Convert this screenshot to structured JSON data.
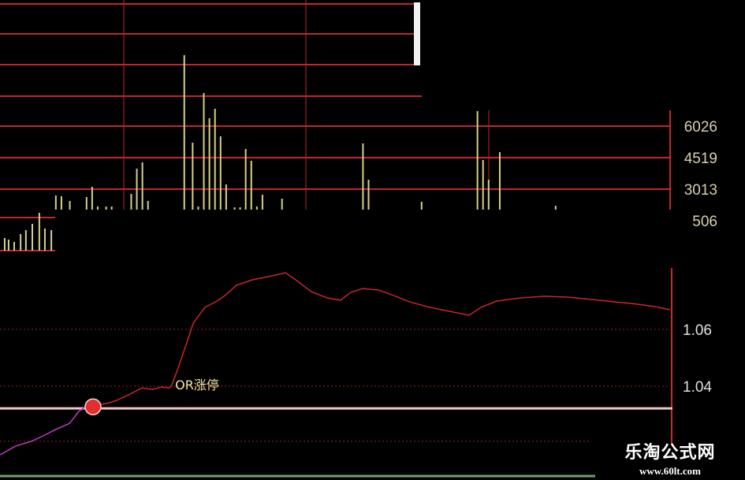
{
  "chart_data": [
    {
      "type": "bar",
      "panel": "volume",
      "x_unit": "minute",
      "xlim": [
        0,
        240
      ],
      "ylim": [
        2033,
        10000
      ],
      "y_ticks": [
        6026,
        4519,
        3013,
        506
      ],
      "y_tick_labels": [
        "6026",
        "4519",
        "3013",
        "506"
      ],
      "grid": true,
      "bar_color": "#d8d08a",
      "grid_color": "#c0282a",
      "x": [
        20,
        22,
        25,
        31,
        33,
        35,
        38,
        40,
        47,
        49,
        51,
        53,
        66,
        69,
        71,
        73,
        75,
        77,
        79,
        81,
        84,
        86,
        88,
        90,
        92,
        94,
        101,
        130,
        132,
        151,
        171,
        173,
        175,
        179,
        199
      ],
      "values": [
        2712,
        2674,
        2448,
        2636,
        3126,
        2184,
        2184,
        2184,
        2787,
        3993,
        4294,
        2448,
        9418,
        5236,
        2184,
        7609,
        6404,
        6856,
        5537,
        3239,
        2146,
        2146,
        4934,
        4369,
        2184,
        2749,
        2561,
        5198,
        3465,
        2410,
        6743,
        4407,
        3465,
        4784,
        2222
      ],
      "inset": {
        "x": [
          1.4,
          2.8,
          4.8,
          7.1,
          9,
          11.3,
          13.8,
          15.8,
          18.1
        ],
        "values": [
          2636,
          2560,
          2447,
          2824,
          3013,
          3314,
          3841,
          3088,
          3013
        ]
      }
    },
    {
      "type": "line",
      "panel": "price",
      "x_unit": "minute",
      "xlim": [
        0,
        240
      ],
      "ylim": [
        1.0135,
        1.0845
      ],
      "y_ticks": [
        1.06,
        1.04
      ],
      "y_tick_labels": [
        "1.06",
        "1.04"
      ],
      "grid": true,
      "reference_line": 1.0322,
      "lower_dotted_line": 1.0206,
      "colors": {
        "pre": "#c040c0",
        "post": "#c8282a",
        "reference": "#f0c8c8",
        "annotation": "#f0e6a0",
        "marker": "#e03030"
      },
      "x": [
        0,
        5.6,
        11.3,
        15.5,
        19.8,
        24.9,
        28.2,
        31.1,
        33.3,
        38.1,
        41.8,
        46.6,
        50.8,
        54.5,
        57.9,
        60.7,
        61.6,
        63.5,
        66.4,
        69.2,
        73.4,
        77.7,
        80.5,
        84.7,
        90.4,
        97.4,
        102.2,
        105.9,
        111.5,
        117.2,
        122,
        125.7,
        129.9,
        135.6,
        141.2,
        146.8,
        153.9,
        161,
        168,
        172.3,
        177.9,
        186.4,
        194.9,
        203.3,
        211.8,
        220.3,
        225.9,
        234.4,
        240
      ],
      "values": [
        1.0158,
        1.0189,
        1.0206,
        1.0225,
        1.0247,
        1.0269,
        1.0311,
        1.0331,
        1.0333,
        1.0339,
        1.035,
        1.0372,
        1.0394,
        1.0389,
        1.0397,
        1.0394,
        1.0406,
        1.0456,
        1.0539,
        1.0622,
        1.0678,
        1.07,
        1.0719,
        1.0756,
        1.0775,
        1.0789,
        1.08,
        1.0775,
        1.0733,
        1.0711,
        1.0703,
        1.0731,
        1.0744,
        1.0739,
        1.0719,
        1.0697,
        1.0678,
        1.0664,
        1.065,
        1.0678,
        1.07,
        1.0711,
        1.0717,
        1.0714,
        1.0706,
        1.0697,
        1.0692,
        1.0681,
        1.0669
      ],
      "marker_index": 8,
      "annotation": {
        "text": "OR涨停",
        "x": 61.6,
        "y": 1.0406
      }
    }
  ],
  "watermark": {
    "title": "乐淘公式网",
    "url": "www.60lt.com"
  }
}
